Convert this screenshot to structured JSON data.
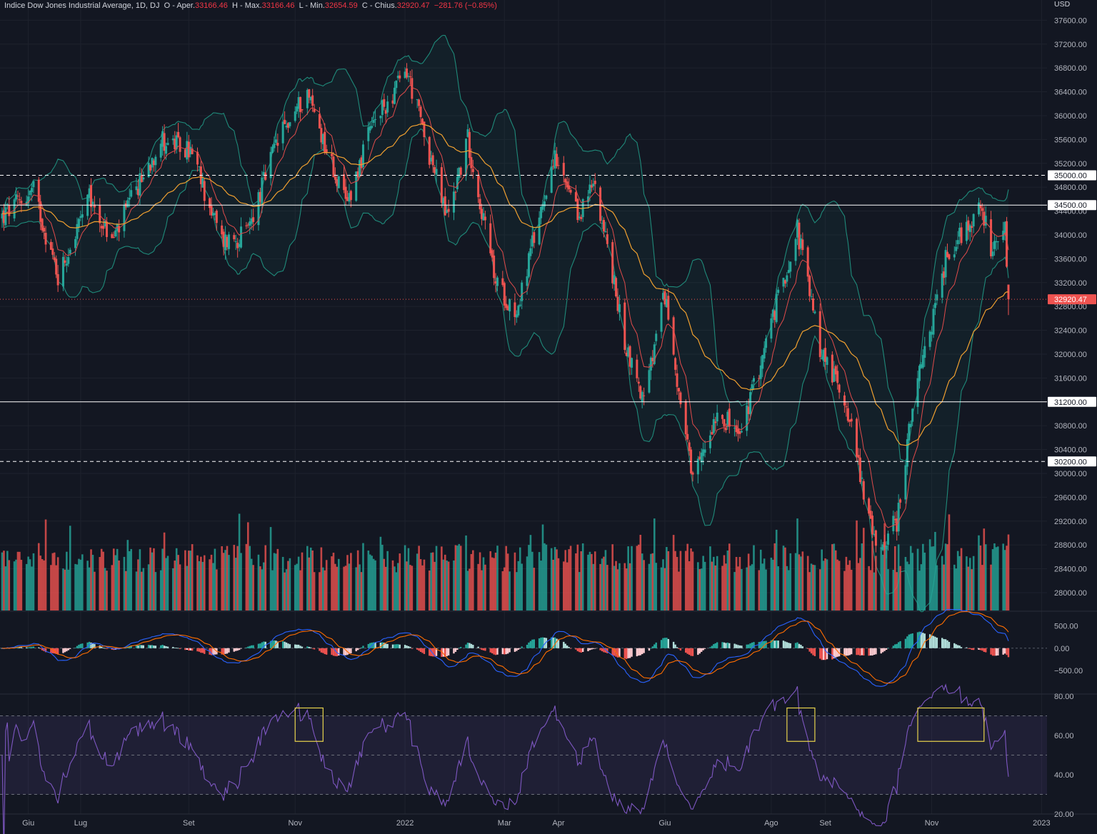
{
  "legend": {
    "symbol": "Indice Dow Jones Industrial Average, 1D, DJ",
    "open_label": "O - Aper.",
    "open": "33166.46",
    "high_label": "H - Max.",
    "high": "33166.46",
    "low_label": "L - Min.",
    "low": "32654.59",
    "close_label": "C - Chius.",
    "close": "32920.47",
    "change": "−281.76 (−0.85%)"
  },
  "currency": "USD",
  "colors": {
    "background": "#131722",
    "up": "#26a69a",
    "down": "#ef5350",
    "ema_fast": "#e04b4b",
    "ema_slow": "#f0a030",
    "bollinger": "#1f8a7a",
    "macd": "#2962ff",
    "signal": "#ff6d00",
    "rsi": "#7e57c2",
    "highlight": "#e8d44d"
  },
  "chart_data": [
    {
      "type": "candlestick",
      "title": "Indice Dow Jones Industrial Average, 1D, DJ",
      "ylim": [
        27700,
        37700
      ],
      "y_ticks": [
        "37600.00",
        "37200.00",
        "36800.00",
        "36400.00",
        "36000.00",
        "35600.00",
        "35200.00",
        "34800.00",
        "34400.00",
        "34000.00",
        "33600.00",
        "33200.00",
        "32800.00",
        "32400.00",
        "32000.00",
        "31600.00",
        "31200.00",
        "30800.00",
        "30400.00",
        "30000.00",
        "29600.00",
        "29200.00",
        "28800.00",
        "28400.00",
        "28000.00"
      ],
      "x_ticks": [
        {
          "label": "Giu",
          "date": "2021-06-01"
        },
        {
          "label": "Lug",
          "date": "2021-07-01"
        },
        {
          "label": "Set",
          "date": "2021-09-01"
        },
        {
          "label": "Nov",
          "date": "2021-11-01"
        },
        {
          "label": "2022",
          "date": "2022-01-03"
        },
        {
          "label": "Mar",
          "date": "2022-03-01"
        },
        {
          "label": "Apr",
          "date": "2022-04-01"
        },
        {
          "label": "Giu",
          "date": "2022-06-01"
        },
        {
          "label": "Ago",
          "date": "2022-08-01"
        },
        {
          "label": "Set",
          "date": "2022-09-01"
        },
        {
          "label": "Nov",
          "date": "2022-11-01"
        },
        {
          "label": "2023",
          "date": "2023-01-03"
        }
      ],
      "date_range": [
        "2021-05-17",
        "2022-12-15"
      ],
      "close_path": [
        {
          "date": "2021-05-17",
          "close": 34300
        },
        {
          "date": "2021-06-04",
          "close": 34750
        },
        {
          "date": "2021-06-18",
          "close": 33300
        },
        {
          "date": "2021-07-06",
          "close": 34600
        },
        {
          "date": "2021-07-19",
          "close": 33900
        },
        {
          "date": "2021-08-16",
          "close": 35600
        },
        {
          "date": "2021-09-02",
          "close": 35400
        },
        {
          "date": "2021-09-20",
          "close": 33900
        },
        {
          "date": "2021-10-04",
          "close": 34000
        },
        {
          "date": "2021-10-22",
          "close": 35600
        },
        {
          "date": "2021-11-08",
          "close": 36400
        },
        {
          "date": "2021-11-30",
          "close": 34500
        },
        {
          "date": "2021-12-15",
          "close": 35800
        },
        {
          "date": "2022-01-04",
          "close": 36750
        },
        {
          "date": "2022-01-27",
          "close": 34300
        },
        {
          "date": "2022-02-08",
          "close": 35600
        },
        {
          "date": "2022-02-24",
          "close": 33200
        },
        {
          "date": "2022-03-08",
          "close": 32700
        },
        {
          "date": "2022-03-29",
          "close": 35300
        },
        {
          "date": "2022-04-12",
          "close": 34300
        },
        {
          "date": "2022-04-22",
          "close": 34900
        },
        {
          "date": "2022-05-09",
          "close": 32200
        },
        {
          "date": "2022-05-20",
          "close": 31200
        },
        {
          "date": "2022-06-01",
          "close": 33000
        },
        {
          "date": "2022-06-17",
          "close": 29800
        },
        {
          "date": "2022-07-01",
          "close": 31100
        },
        {
          "date": "2022-07-14",
          "close": 30600
        },
        {
          "date": "2022-08-16",
          "close": 34100
        },
        {
          "date": "2022-08-29",
          "close": 32100
        },
        {
          "date": "2022-09-13",
          "close": 31200
        },
        {
          "date": "2022-09-30",
          "close": 28700
        },
        {
          "date": "2022-10-12",
          "close": 29200
        },
        {
          "date": "2022-10-21",
          "close": 31100
        },
        {
          "date": "2022-11-10",
          "close": 33700
        },
        {
          "date": "2022-11-30",
          "close": 34500
        },
        {
          "date": "2022-12-05",
          "close": 33600
        },
        {
          "date": "2022-12-13",
          "close": 34100
        },
        {
          "date": "2022-12-15",
          "close": 32920
        }
      ],
      "indicators": [
        "EMA fast",
        "EMA slow",
        "Bollinger Bands",
        "Volume"
      ],
      "horizontal_levels": [
        {
          "value": "35000.00",
          "style": "dashed"
        },
        {
          "value": "34500.00",
          "style": "solid"
        },
        {
          "value": "31200.00",
          "style": "solid"
        },
        {
          "value": "30200.00",
          "style": "dashed"
        }
      ],
      "last_price": "32920.47"
    },
    {
      "type": "line",
      "name": "MACD",
      "ylim": [
        -1000,
        800
      ],
      "y_ticks": [
        "500.00",
        "0.00",
        "−500.00"
      ],
      "series": [
        {
          "name": "MACD"
        },
        {
          "name": "Signal"
        },
        {
          "name": "Histogram"
        }
      ]
    },
    {
      "type": "line",
      "name": "RSI",
      "ylim": [
        20,
        80
      ],
      "y_ticks": [
        "80.00",
        "60.00",
        "40.00",
        "20.00"
      ],
      "band": [
        30,
        70
      ],
      "highlight_boxes": [
        {
          "from": "2021-11-01",
          "to": "2021-11-17"
        },
        {
          "from": "2022-08-10",
          "to": "2022-08-26"
        },
        {
          "from": "2022-10-24",
          "to": "2022-12-01"
        }
      ]
    }
  ]
}
